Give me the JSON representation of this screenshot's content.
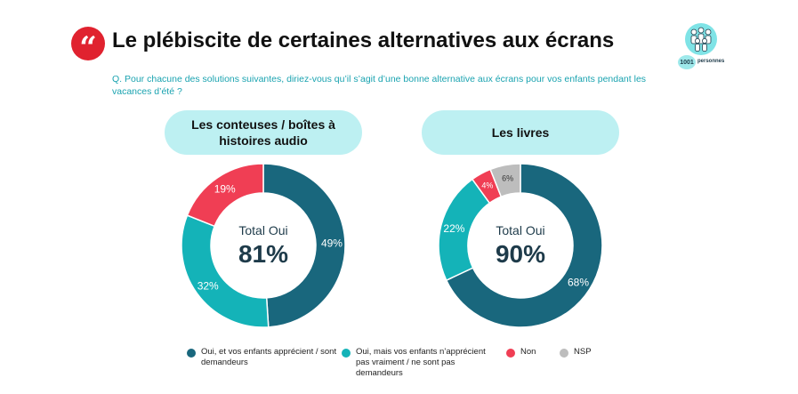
{
  "header": {
    "title": "Le plébiscite de certaines alternatives aux écrans",
    "question": "Q. Pour chacune des solutions suivantes, diriez-vous qu’il s’agit d’une bonne alternative aux écrans pour vos enfants pendant les vacances d’été ?",
    "quote_icon": "quote-icon",
    "quote_glyph": "“",
    "quote_color": "#e0222f"
  },
  "sample": {
    "count": "1001",
    "unit": "personnes",
    "icon": "people-group-icon"
  },
  "colors": {
    "dark_teal": "#19677d",
    "teal": "#14b3b8",
    "red": "#f03e54",
    "grey": "#bdbdbd",
    "pill_bg": "#bdf0f2"
  },
  "chart_data": [
    {
      "type": "pie",
      "donut": true,
      "title": "Les conteuses / boîtes à histoires audio",
      "center_label": "Total Oui",
      "center_value": "81%",
      "slices": [
        {
          "category": "Oui, et vos enfants apprécient / sont demandeurs",
          "value": 49,
          "label": "49%",
          "color": "#19677d"
        },
        {
          "category": "Oui, mais vos enfants n’apprécient pas vraiment / ne sont pas demandeurs",
          "value": 32,
          "label": "32%",
          "color": "#14b3b8"
        },
        {
          "category": "Non",
          "value": 19,
          "label": "19%",
          "color": "#f03e54"
        }
      ]
    },
    {
      "type": "pie",
      "donut": true,
      "title": "Les livres",
      "center_label": "Total Oui",
      "center_value": "90%",
      "slices": [
        {
          "category": "Oui, et vos enfants apprécient / sont demandeurs",
          "value": 68,
          "label": "68%",
          "color": "#19677d"
        },
        {
          "category": "Oui, mais vos enfants n’apprécient pas vraiment / ne sont pas demandeurs",
          "value": 22,
          "label": "22%",
          "color": "#14b3b8"
        },
        {
          "category": "Non",
          "value": 4,
          "label": "4%",
          "color": "#f03e54"
        },
        {
          "category": "NSP",
          "value": 6,
          "label": "6%",
          "color": "#bdbdbd"
        }
      ]
    }
  ],
  "legend": [
    {
      "label": "Oui, et vos enfants apprécient / sont demandeurs",
      "color": "#19677d"
    },
    {
      "label": "Oui, mais vos enfants n’apprécient pas vraiment / ne sont pas demandeurs",
      "color": "#14b3b8"
    },
    {
      "label": "Non",
      "color": "#f03e54"
    },
    {
      "label": "NSP",
      "color": "#bdbdbd"
    }
  ]
}
